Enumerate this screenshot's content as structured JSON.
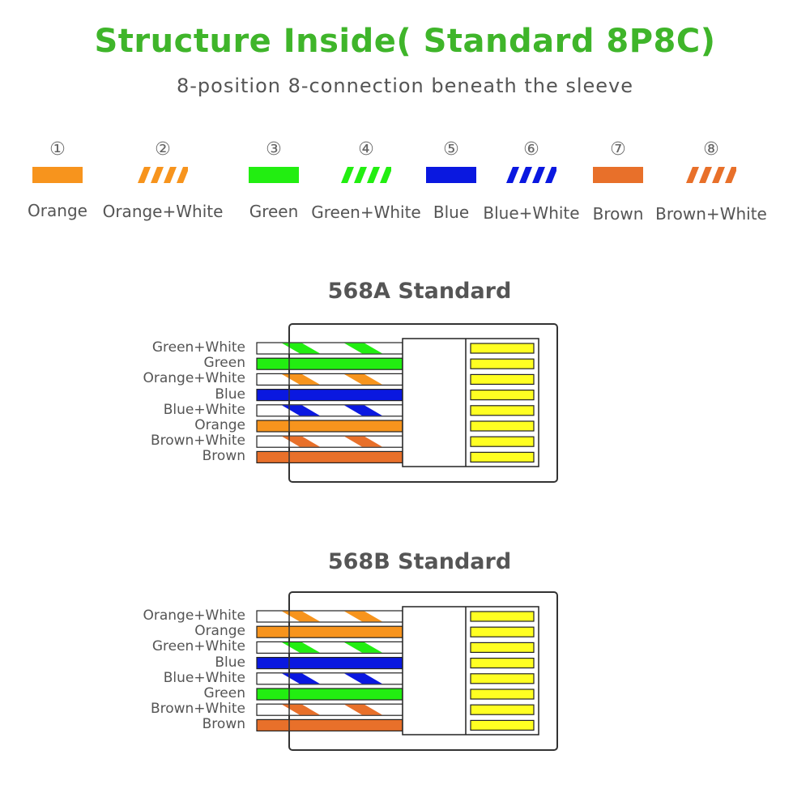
{
  "header": {
    "title": "Structure Inside( Standard 8P8C)",
    "subtitle": "8-position 8-connection beneath the sleeve"
  },
  "colors": {
    "title": "#3fb52a",
    "orange": "#f7941d",
    "green": "#22ee11",
    "blue": "#0a18e0",
    "brown": "#e8702a",
    "pin": "#ffff22"
  },
  "legend": [
    {
      "number": "①",
      "label": "Orange",
      "color": "orange",
      "striped": false
    },
    {
      "number": "②",
      "label": "Orange+White",
      "color": "orange",
      "striped": true
    },
    {
      "number": "③",
      "label": "Green",
      "color": "green",
      "striped": false
    },
    {
      "number": "④",
      "label": "Green+White",
      "color": "green",
      "striped": true
    },
    {
      "number": "⑤",
      "label": "Blue",
      "color": "blue",
      "striped": false
    },
    {
      "number": "⑥",
      "label": "Blue+White",
      "color": "blue",
      "striped": true
    },
    {
      "number": "⑦",
      "label": "Brown",
      "color": "brown",
      "striped": false
    },
    {
      "number": "⑧",
      "label": "Brown+White",
      "color": "brown",
      "striped": true
    }
  ],
  "standards": [
    {
      "title": "568A Standard",
      "wires": [
        {
          "label": "Green+White",
          "color": "green",
          "striped": true
        },
        {
          "label": "Green",
          "color": "green",
          "striped": false
        },
        {
          "label": "Orange+White",
          "color": "orange",
          "striped": true
        },
        {
          "label": "Blue",
          "color": "blue",
          "striped": false
        },
        {
          "label": "Blue+White",
          "color": "blue",
          "striped": true
        },
        {
          "label": "Orange",
          "color": "orange",
          "striped": false
        },
        {
          "label": "Brown+White",
          "color": "brown",
          "striped": true
        },
        {
          "label": "Brown",
          "color": "brown",
          "striped": false
        }
      ]
    },
    {
      "title": "568B Standard",
      "wires": [
        {
          "label": "Orange+White",
          "color": "orange",
          "striped": true
        },
        {
          "label": "Orange",
          "color": "orange",
          "striped": false
        },
        {
          "label": "Green+White",
          "color": "green",
          "striped": true
        },
        {
          "label": "Blue",
          "color": "blue",
          "striped": false
        },
        {
          "label": "Blue+White",
          "color": "blue",
          "striped": true
        },
        {
          "label": "Green",
          "color": "green",
          "striped": false
        },
        {
          "label": "Brown+White",
          "color": "brown",
          "striped": true
        },
        {
          "label": "Brown",
          "color": "brown",
          "striped": false
        }
      ]
    }
  ]
}
